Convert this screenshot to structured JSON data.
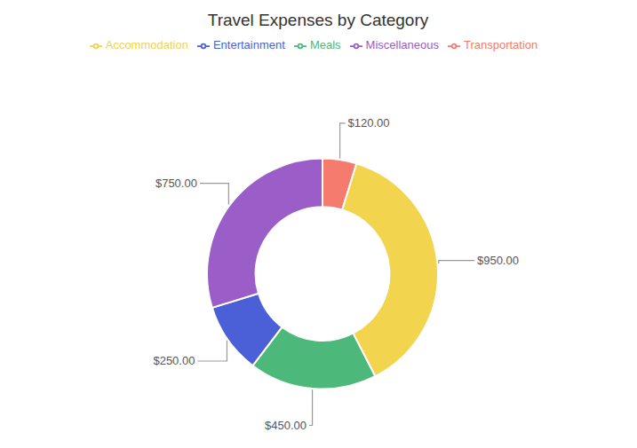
{
  "chart_data": {
    "type": "pie",
    "title": "Travel Expenses by Category",
    "categories": [
      "Transportation",
      "Accommodation",
      "Meals",
      "Entertainment",
      "Miscellaneous"
    ],
    "values": [
      120,
      950,
      450,
      250,
      750
    ],
    "value_labels": [
      "$120.00",
      "$950.00",
      "$450.00",
      "$250.00",
      "$750.00"
    ],
    "colors": [
      "#F47B6E",
      "#F2D44E",
      "#4CB87A",
      "#4B5FD6",
      "#9B5DC8"
    ],
    "data_labels": true,
    "legend": "top"
  }
}
